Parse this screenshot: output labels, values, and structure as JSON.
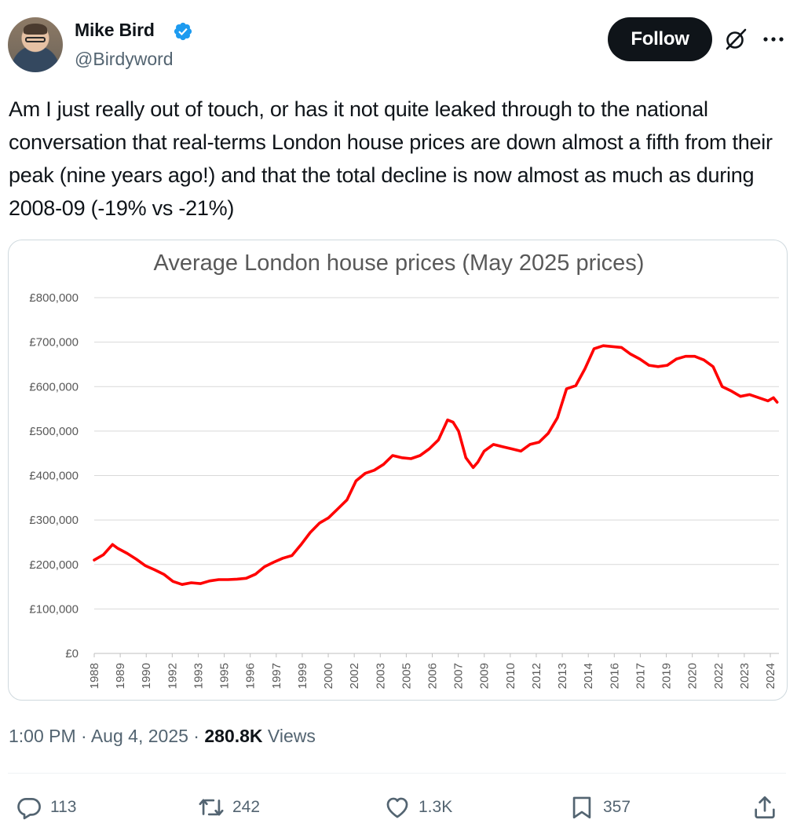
{
  "author": {
    "name": "Mike Bird",
    "handle": "@Birdyword",
    "verified": true,
    "avatar_icon": "profile-photo"
  },
  "header": {
    "follow_label": "Follow",
    "grok_icon": "grok-icon",
    "more_icon": "more-dots-icon"
  },
  "tweet": {
    "text": "Am I just really out of touch, or has it not quite leaked through to the national conversation that real-terms London house prices are down almost a fifth from their peak (nine years ago!) and that the total decline is now almost as much as during 2008-09 (-19% vs -21%)"
  },
  "meta": {
    "time": "1:00 PM",
    "sep1": "·",
    "date": "Aug 4, 2025",
    "sep2": "·",
    "views_count": "280.8K",
    "views_label": "Views"
  },
  "actions": {
    "replies": "113",
    "reposts": "242",
    "likes": "1.3K",
    "bookmarks": "357"
  },
  "colors": {
    "accent_blue": "#1d9bf0",
    "line_red": "#ff0000",
    "text_secondary": "#536471"
  },
  "chart_data": {
    "type": "line",
    "title": "Average London house prices (May 2025 prices)",
    "xlabel": "",
    "ylabel": "",
    "ylim": [
      0,
      800000
    ],
    "yticks": [
      0,
      100000,
      200000,
      300000,
      400000,
      500000,
      600000,
      700000,
      800000
    ],
    "ytick_labels": [
      "£0",
      "£100,000",
      "£200,000",
      "£300,000",
      "£400,000",
      "£500,000",
      "£600,000",
      "£700,000",
      "£800,000"
    ],
    "xticks": [
      "1988",
      "1989",
      "1990",
      "1992",
      "1993",
      "1995",
      "1996",
      "1997",
      "1999",
      "2000",
      "2002",
      "2003",
      "2005",
      "2006",
      "2007",
      "2009",
      "2010",
      "2012",
      "2013",
      "2014",
      "2016",
      "2017",
      "2019",
      "2020",
      "2022",
      "2023",
      "2024"
    ],
    "xlim": [
      1988.0,
      2025.4
    ],
    "grid": true,
    "series": [
      {
        "color": "#ff0000",
        "x": [
          1988.0,
          1988.5,
          1989.0,
          1989.3,
          1989.8,
          1990.3,
          1990.8,
          1991.3,
          1991.8,
          1992.3,
          1992.8,
          1993.3,
          1993.8,
          1994.3,
          1994.8,
          1995.3,
          1995.8,
          1996.3,
          1996.8,
          1997.3,
          1997.8,
          1998.3,
          1998.8,
          1999.3,
          1999.8,
          2000.3,
          2000.8,
          2001.3,
          2001.8,
          2002.3,
          2002.8,
          2003.3,
          2003.8,
          2004.3,
          2004.8,
          2005.3,
          2005.8,
          2006.3,
          2006.8,
          2007.3,
          2007.6,
          2007.9,
          2008.3,
          2008.7,
          2008.95,
          2009.3,
          2009.8,
          2010.3,
          2010.8,
          2011.3,
          2011.8,
          2012.3,
          2012.8,
          2013.3,
          2013.8,
          2014.3,
          2014.8,
          2015.3,
          2015.8,
          2016.3,
          2016.8,
          2017.3,
          2017.8,
          2018.3,
          2018.8,
          2019.3,
          2019.8,
          2020.3,
          2020.8,
          2021.3,
          2021.8,
          2022.3,
          2022.8,
          2023.3,
          2023.8,
          2024.3,
          2024.8,
          2025.1,
          2025.3
        ],
        "values": [
          210000,
          222000,
          245000,
          236000,
          225000,
          212000,
          197000,
          188000,
          178000,
          162000,
          155000,
          159000,
          157000,
          163000,
          166000,
          166000,
          167000,
          169000,
          178000,
          195000,
          205000,
          214000,
          220000,
          245000,
          272000,
          293000,
          305000,
          325000,
          345000,
          388000,
          405000,
          412000,
          425000,
          445000,
          440000,
          438000,
          445000,
          460000,
          480000,
          525000,
          520000,
          500000,
          440000,
          418000,
          430000,
          455000,
          470000,
          465000,
          460000,
          455000,
          470000,
          475000,
          495000,
          530000,
          595000,
          602000,
          640000,
          685000,
          692000,
          690000,
          688000,
          673000,
          662000,
          648000,
          645000,
          648000,
          662000,
          668000,
          668000,
          660000,
          645000,
          600000,
          590000,
          578000,
          582000,
          575000,
          568000,
          575000,
          565000
        ]
      }
    ]
  }
}
